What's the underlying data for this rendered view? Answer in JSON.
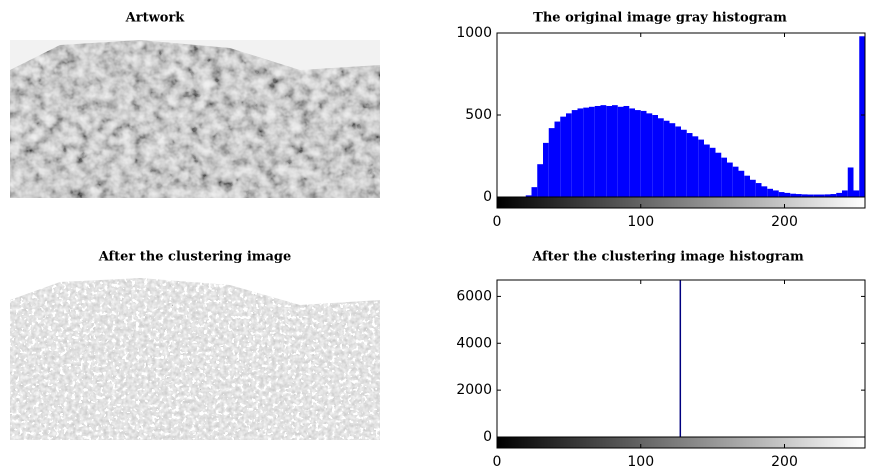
{
  "chart_data": [
    {
      "type": "image",
      "title": "Artwork"
    },
    {
      "type": "histogram",
      "title": "The original image gray histogram",
      "bins": [
        0,
        4,
        8,
        12,
        16,
        20,
        24,
        28,
        32,
        36,
        40,
        44,
        48,
        52,
        56,
        60,
        64,
        68,
        72,
        76,
        80,
        84,
        88,
        92,
        96,
        100,
        104,
        108,
        112,
        116,
        120,
        124,
        128,
        132,
        136,
        140,
        144,
        148,
        152,
        156,
        160,
        164,
        168,
        172,
        176,
        180,
        184,
        188,
        192,
        196,
        200,
        204,
        208,
        212,
        216,
        220,
        224,
        228,
        232,
        236,
        240,
        244,
        248,
        252,
        256
      ],
      "values": [
        0,
        0,
        0,
        0,
        0,
        10,
        60,
        200,
        330,
        420,
        460,
        490,
        510,
        530,
        540,
        545,
        550,
        555,
        560,
        555,
        560,
        550,
        555,
        540,
        530,
        525,
        510,
        500,
        480,
        465,
        450,
        430,
        410,
        390,
        370,
        350,
        320,
        300,
        270,
        240,
        210,
        185,
        160,
        130,
        105,
        85,
        65,
        50,
        40,
        30,
        25,
        20,
        18,
        16,
        15,
        15,
        15,
        16,
        18,
        25,
        40,
        180,
        40,
        980
      ],
      "color": "#0000ff",
      "xlim": [
        0,
        256
      ],
      "ylim": [
        0,
        1000
      ],
      "xticks": [
        0,
        100,
        200
      ],
      "yticks": [
        0,
        500,
        1000
      ]
    },
    {
      "type": "image",
      "title": "After the clustering image"
    },
    {
      "type": "histogram",
      "title": "After the clustering image histogram",
      "bins": [
        127,
        128
      ],
      "values": [
        6700
      ],
      "color": "#00007f",
      "xlim": [
        0,
        256
      ],
      "ylim": [
        0,
        6700
      ],
      "xticks": [
        0,
        100,
        200
      ],
      "yticks": [
        0,
        2000,
        4000,
        6000
      ]
    }
  ]
}
